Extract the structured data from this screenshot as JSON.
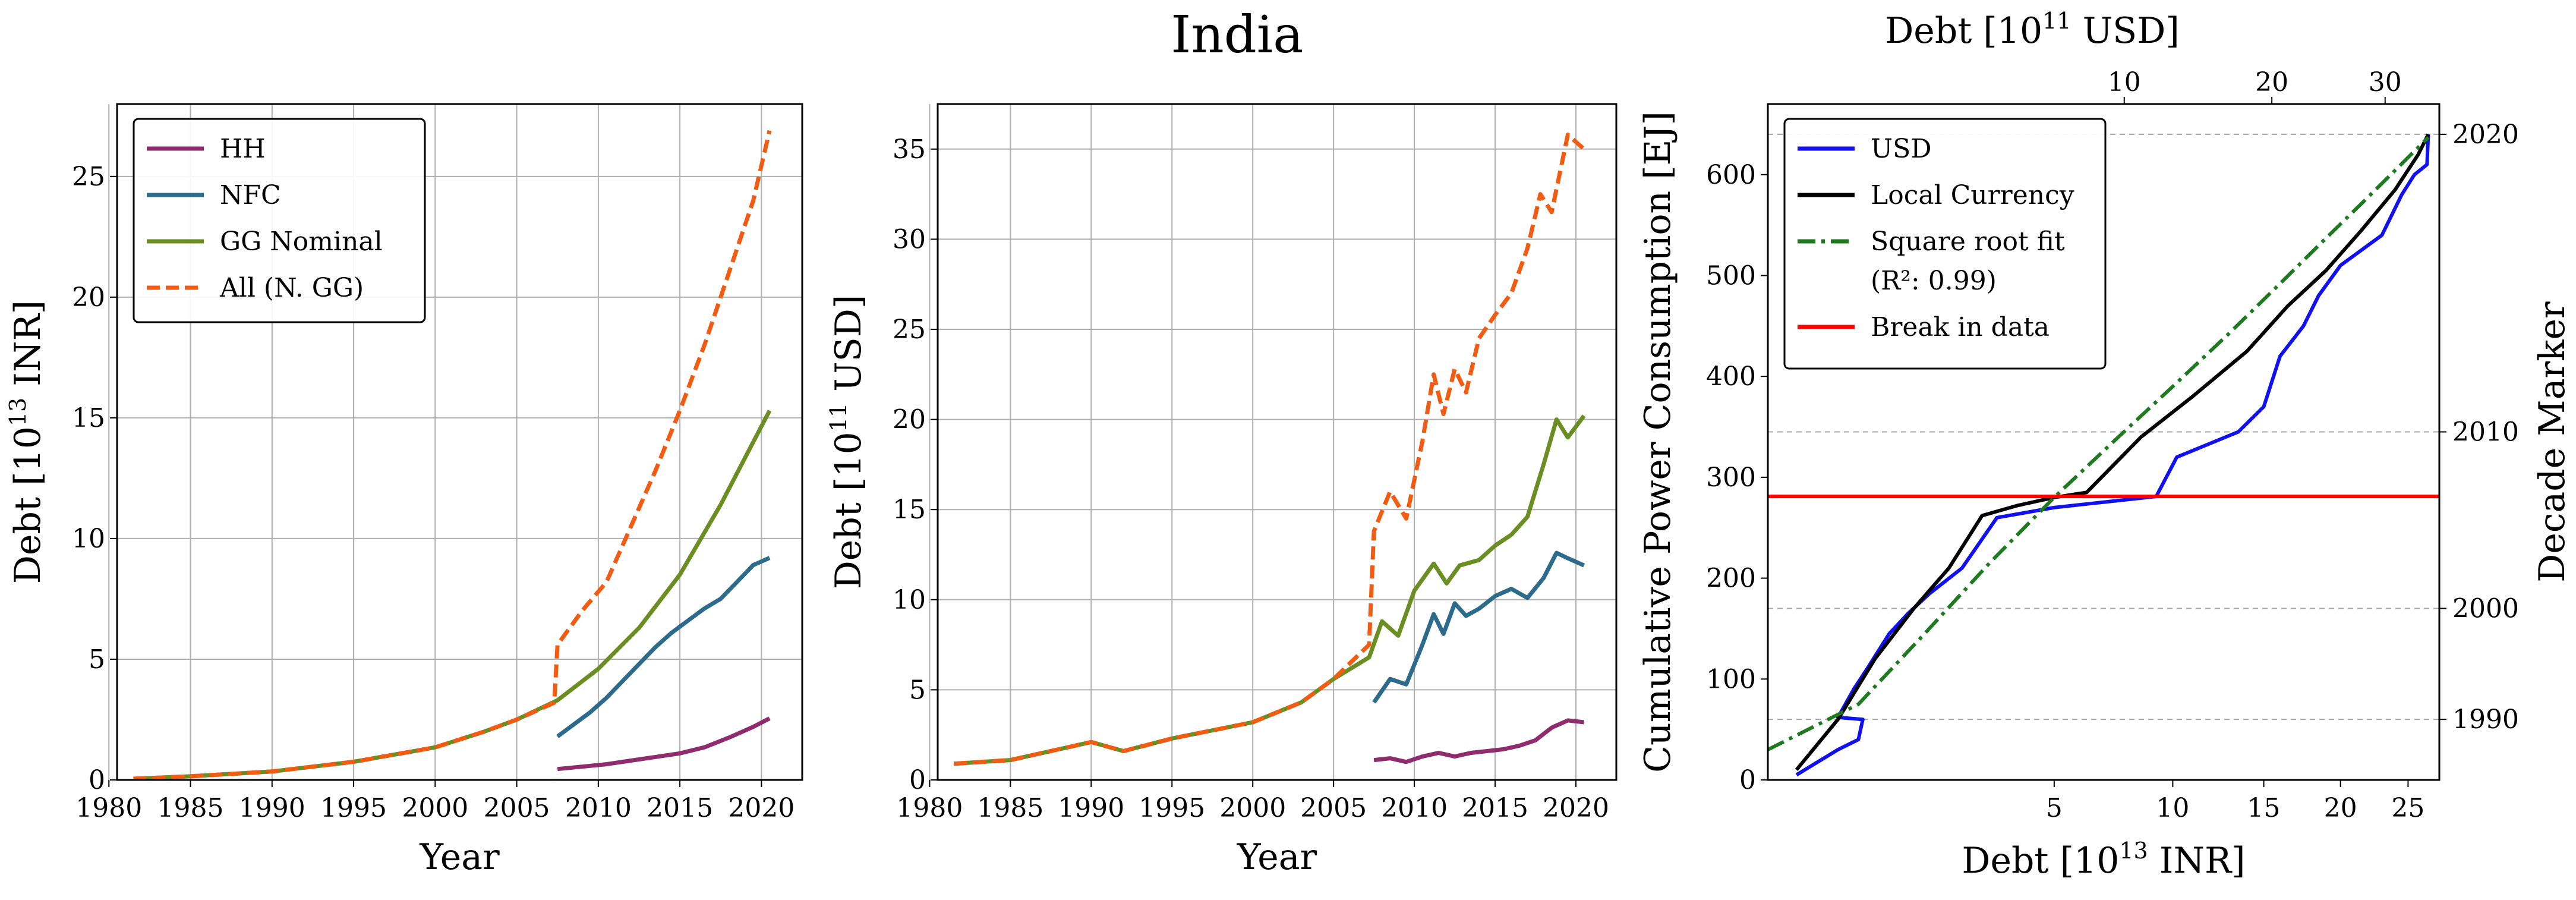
{
  "figure_title": "India",
  "chart_data": [
    {
      "type": "line",
      "panel": "left",
      "xlabel": "Year",
      "ylabel": "Debt [10^13 INR]",
      "ylabel_parts": {
        "pre": "Debt [10",
        "sup": "13",
        "post": " INR]"
      },
      "xlim": [
        1980.5,
        2022.5
      ],
      "ylim": [
        0,
        28
      ],
      "xticks": [
        1980,
        1985,
        1990,
        1995,
        2000,
        2005,
        2010,
        2015,
        2020
      ],
      "yticks": [
        0,
        5,
        10,
        15,
        20,
        25
      ],
      "grid": true,
      "legend_position": "top-left",
      "series": [
        {
          "name": "HH",
          "color": "#8e2c6e",
          "dash": false,
          "x": [
            2007.5,
            2009,
            2010.5,
            2012,
            2013.5,
            2015,
            2016.5,
            2018,
            2019.5,
            2020.5
          ],
          "y": [
            0.45,
            0.55,
            0.65,
            0.8,
            0.95,
            1.1,
            1.35,
            1.75,
            2.2,
            2.55
          ]
        },
        {
          "name": "NFC",
          "color": "#2c6b8c",
          "dash": false,
          "x": [
            2007.5,
            2008.5,
            2009.5,
            2010.5,
            2011.5,
            2012.5,
            2013.5,
            2014.5,
            2015.5,
            2016.5,
            2017.5,
            2018.5,
            2019.5,
            2020.5
          ],
          "y": [
            1.8,
            2.3,
            2.8,
            3.4,
            4.1,
            4.8,
            5.5,
            6.1,
            6.6,
            7.1,
            7.5,
            8.2,
            8.9,
            9.2
          ]
        },
        {
          "name": "GG Nominal",
          "color": "#6b8e23",
          "dash": false,
          "x": [
            1981.5,
            1985,
            1990,
            1995,
            2000,
            2003,
            2005,
            2007.5,
            2010,
            2012.5,
            2015,
            2017.5,
            2020.5
          ],
          "y": [
            0.05,
            0.15,
            0.35,
            0.75,
            1.35,
            2.0,
            2.5,
            3.3,
            4.6,
            6.3,
            8.5,
            11.4,
            15.3
          ]
        },
        {
          "name": "All (N. GG)",
          "color": "#f25c12",
          "dash": true,
          "x": [
            1981.5,
            1985,
            1990,
            1995,
            2000,
            2003,
            2005,
            2007.3,
            2007.5,
            2009,
            2010.5,
            2012,
            2013.5,
            2015,
            2016.5,
            2018,
            2019.5,
            2020.5
          ],
          "y": [
            0.05,
            0.15,
            0.35,
            0.75,
            1.35,
            2.0,
            2.5,
            3.2,
            5.6,
            7.0,
            8.2,
            10.5,
            12.8,
            15.3,
            18.0,
            21.0,
            24.0,
            26.9
          ]
        }
      ]
    },
    {
      "type": "line",
      "panel": "middle",
      "xlabel": "Year",
      "ylabel": "Debt [10^11 USD]",
      "ylabel_parts": {
        "pre": "Debt [10",
        "sup": "11",
        "post": " USD]"
      },
      "xlim": [
        1980.5,
        2022.5
      ],
      "ylim": [
        0,
        37.5
      ],
      "xticks": [
        1980,
        1985,
        1990,
        1995,
        2000,
        2005,
        2010,
        2015,
        2020
      ],
      "yticks": [
        0,
        5,
        10,
        15,
        20,
        25,
        30,
        35
      ],
      "grid": true,
      "series": [
        {
          "name": "HH",
          "color": "#8e2c6e",
          "dash": false,
          "x": [
            2007.5,
            2008.5,
            2009.5,
            2010.5,
            2011.5,
            2012.5,
            2013.5,
            2014.5,
            2015.5,
            2016.5,
            2017.5,
            2018.5,
            2019.5,
            2020.5
          ],
          "y": [
            1.1,
            1.2,
            1.0,
            1.3,
            1.5,
            1.3,
            1.5,
            1.6,
            1.7,
            1.9,
            2.2,
            2.9,
            3.3,
            3.2
          ]
        },
        {
          "name": "NFC",
          "color": "#2c6b8c",
          "dash": false,
          "x": [
            2007.5,
            2008.5,
            2009.5,
            2010.5,
            2011.2,
            2011.8,
            2012.5,
            2013.2,
            2014,
            2015,
            2016,
            2017,
            2018,
            2018.8,
            2019.5,
            2020.5
          ],
          "y": [
            4.3,
            5.6,
            5.3,
            7.5,
            9.2,
            8.1,
            9.8,
            9.1,
            9.5,
            10.2,
            10.6,
            10.1,
            11.2,
            12.6,
            12.3,
            11.9
          ]
        },
        {
          "name": "GG Nominal",
          "color": "#6b8e23",
          "dash": false,
          "x": [
            1981.5,
            1985,
            1990,
            1992,
            1995,
            2000,
            2003,
            2005,
            2007.2,
            2008,
            2009,
            2010,
            2011.2,
            2012,
            2012.8,
            2014,
            2015,
            2016,
            2017,
            2018,
            2018.8,
            2019.5,
            2020.5
          ],
          "y": [
            0.9,
            1.1,
            2.1,
            1.6,
            2.3,
            3.2,
            4.3,
            5.6,
            6.8,
            8.8,
            8.0,
            10.5,
            12.0,
            10.9,
            11.9,
            12.2,
            13.0,
            13.6,
            14.6,
            17.5,
            20.0,
            19.0,
            20.2
          ]
        },
        {
          "name": "All (N. GG)",
          "color": "#f25c12",
          "dash": true,
          "x": [
            1981.5,
            1985,
            1990,
            1992,
            1995,
            2000,
            2003,
            2005,
            2007.2,
            2007.5,
            2008.5,
            2009.5,
            2010.5,
            2011.2,
            2011.8,
            2012.5,
            2013.2,
            2014,
            2015,
            2016,
            2017,
            2017.8,
            2018.5,
            2019.5,
            2020.5
          ],
          "y": [
            0.9,
            1.1,
            2.1,
            1.6,
            2.3,
            3.2,
            4.3,
            5.6,
            7.5,
            13.8,
            16.0,
            14.5,
            18.8,
            22.5,
            20.3,
            22.8,
            21.5,
            24.5,
            25.8,
            27.0,
            29.5,
            32.5,
            31.5,
            35.8,
            35.0
          ]
        }
      ]
    },
    {
      "type": "line",
      "panel": "right",
      "xlabel": "Debt [10^13 INR]",
      "xlabel_parts": {
        "pre": "Debt [10",
        "sup": "13",
        "post": " INR]"
      },
      "xlabel_top": "Debt [10^11 USD]",
      "xlabel_top_parts": {
        "pre": "Debt [10",
        "sup": "11",
        "post": " USD]"
      },
      "ylabel": "Cumulative Power Consumption [EJ]",
      "ylabel_right": "Decade Marker",
      "x_scale": "sqrt",
      "xlim": [
        0,
        27.5
      ],
      "ylim": [
        0,
        670
      ],
      "xticks": [
        5,
        10,
        15,
        20,
        25
      ],
      "xticks_top": [
        10,
        20,
        30
      ],
      "xlim_top": [
        0,
        35.5
      ],
      "yticks": [
        0,
        100,
        200,
        300,
        400,
        500,
        600
      ],
      "decade_markers": [
        {
          "label": "1990",
          "y": 60
        },
        {
          "label": "2000",
          "y": 170
        },
        {
          "label": "2010",
          "y": 345
        },
        {
          "label": "2020",
          "y": 640
        }
      ],
      "break_line_y": 281,
      "legend_position": "top-left",
      "series": [
        {
          "name": "USD",
          "color": "#1010f0",
          "dash": false,
          "x": [
            0.05,
            0.3,
            0.5,
            0.55,
            0.3,
            0.45,
            0.6,
            0.9,
            1.2,
            1.6,
            2.3,
            3.2,
            5.0,
            9.2,
            10.2,
            13.5,
            15.0,
            16.0,
            17.5,
            18.5,
            20.0,
            23.0,
            24.5,
            25.5,
            26.5,
            26.6
          ],
          "y": [
            5,
            30,
            40,
            60,
            62,
            90,
            110,
            145,
            165,
            185,
            210,
            260,
            270,
            281,
            320,
            345,
            370,
            420,
            450,
            480,
            510,
            540,
            580,
            600,
            610,
            640
          ]
        },
        {
          "name": "Local Currency",
          "color": "#000000",
          "dash": false,
          "x": [
            0.05,
            0.3,
            0.7,
            1.3,
            2.0,
            2.8,
            3.8,
            5.0,
            6.2,
            8.5,
            11.0,
            14.0,
            16.5,
            19.0,
            21.5,
            24.0,
            25.8,
            26.6
          ],
          "y": [
            10,
            60,
            120,
            170,
            210,
            262,
            272,
            280,
            285,
            340,
            380,
            425,
            470,
            505,
            545,
            585,
            620,
            640
          ]
        },
        {
          "name": "Square root fit",
          "legend_sub": "(R²: 0.99)",
          "color": "#1e7a1e",
          "dashdot": true,
          "x": [
            0.0,
            0.5,
            1.5,
            3.0,
            5.0,
            7.5,
            10.0,
            13.0,
            16.0,
            19.0,
            22.0,
            25.0,
            26.6
          ],
          "y": [
            30,
            75,
            145,
            215,
            280,
            340,
            390,
            443,
            492,
            537,
            578,
            617,
            637
          ]
        },
        {
          "name": "Break in data",
          "color": "#ff0000",
          "horizontal": true
        }
      ]
    }
  ]
}
